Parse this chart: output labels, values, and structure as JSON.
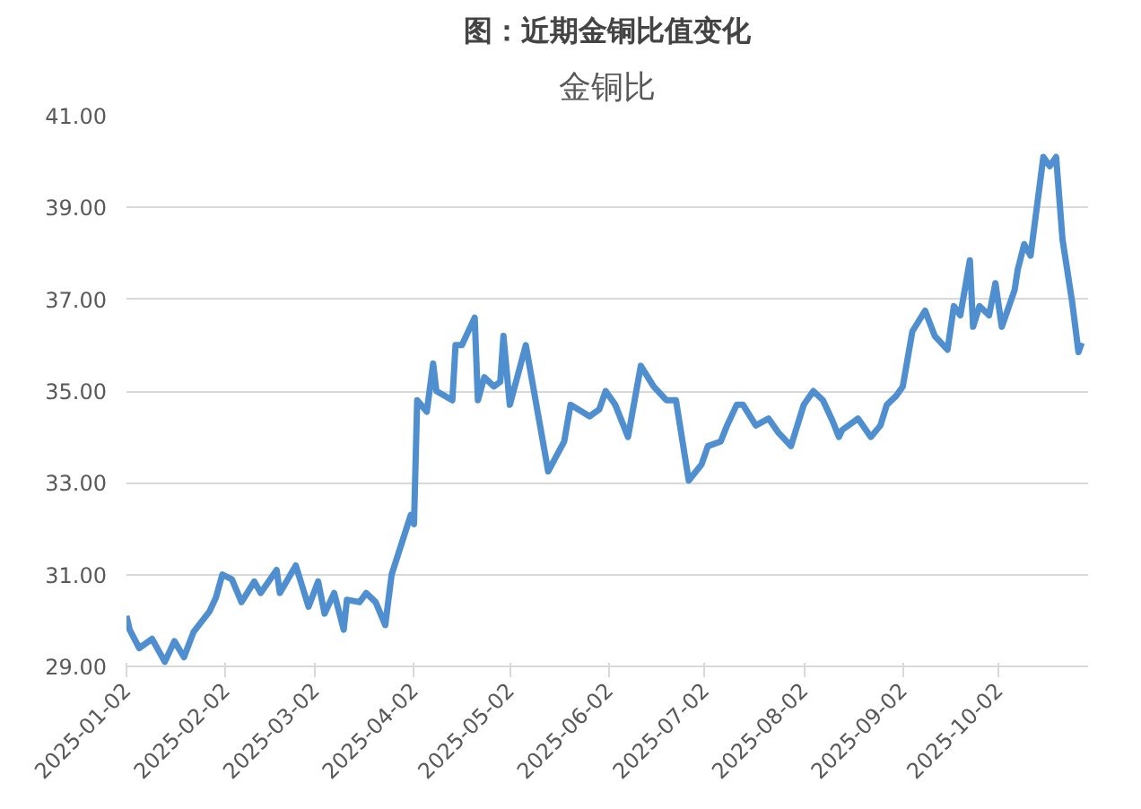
{
  "chart_data": {
    "type": "line",
    "title": "图：近期金铜比值变化",
    "subtitle": "金铜比",
    "x": [
      "2025-01-02",
      "2025-01-03",
      "2025-01-06",
      "2025-01-10",
      "2025-01-14",
      "2025-01-17",
      "2025-01-20",
      "2025-01-23",
      "2025-01-28",
      "2025-01-30",
      "2025-02-01",
      "2025-02-04",
      "2025-02-07",
      "2025-02-11",
      "2025-02-13",
      "2025-02-16",
      "2025-02-18",
      "2025-02-19",
      "2025-02-24",
      "2025-02-28",
      "2025-03-03",
      "2025-03-05",
      "2025-03-08",
      "2025-03-11",
      "2025-03-12",
      "2025-03-16",
      "2025-03-18",
      "2025-03-21",
      "2025-03-24",
      "2025-03-26",
      "2025-04-01",
      "2025-04-02",
      "2025-04-03",
      "2025-04-06",
      "2025-04-08",
      "2025-04-09",
      "2025-04-14",
      "2025-04-15",
      "2025-04-17",
      "2025-04-21",
      "2025-04-22",
      "2025-04-24",
      "2025-04-27",
      "2025-04-29",
      "2025-04-30",
      "2025-05-02",
      "2025-05-07",
      "2025-05-14",
      "2025-05-19",
      "2025-05-21",
      "2025-05-27",
      "2025-05-30",
      "2025-06-01",
      "2025-06-04",
      "2025-06-08",
      "2025-06-12",
      "2025-06-16",
      "2025-06-20",
      "2025-06-23",
      "2025-06-27",
      "2025-07-01",
      "2025-07-03",
      "2025-07-07",
      "2025-07-09",
      "2025-07-12",
      "2025-07-14",
      "2025-07-18",
      "2025-07-22",
      "2025-07-25",
      "2025-07-29",
      "2025-08-02",
      "2025-08-05",
      "2025-08-08",
      "2025-08-11",
      "2025-08-13",
      "2025-08-14",
      "2025-08-19",
      "2025-08-23",
      "2025-08-26",
      "2025-08-28",
      "2025-08-31",
      "2025-09-02",
      "2025-09-05",
      "2025-09-09",
      "2025-09-12",
      "2025-09-16",
      "2025-09-18",
      "2025-09-20",
      "2025-09-23",
      "2025-09-24",
      "2025-09-26",
      "2025-09-29",
      "2025-10-01",
      "2025-10-03",
      "2025-10-07",
      "2025-10-08",
      "2025-10-10",
      "2025-10-12",
      "2025-10-16",
      "2025-10-18",
      "2025-10-20",
      "2025-10-22",
      "2025-10-25",
      "2025-10-27",
      "2025-10-28"
    ],
    "series": [
      {
        "color": "#4f8fd0",
        "values": [
          30.1,
          29.8,
          29.4,
          29.6,
          29.1,
          29.55,
          29.2,
          29.75,
          30.2,
          30.5,
          31.0,
          30.9,
          30.4,
          30.85,
          30.6,
          30.9,
          31.1,
          30.6,
          31.2,
          30.3,
          30.85,
          30.15,
          30.6,
          29.8,
          30.45,
          30.4,
          30.6,
          30.4,
          29.9,
          31.0,
          32.3,
          32.1,
          34.8,
          34.55,
          35.6,
          35.0,
          34.8,
          36.0,
          36.0,
          36.6,
          34.8,
          35.3,
          35.1,
          35.2,
          36.2,
          34.7,
          36.0,
          33.25,
          33.9,
          34.7,
          34.45,
          34.6,
          35.0,
          34.7,
          34.0,
          35.55,
          35.1,
          34.8,
          34.8,
          33.05,
          33.4,
          33.8,
          33.9,
          34.25,
          34.7,
          34.7,
          34.25,
          34.4,
          34.1,
          33.8,
          34.7,
          35.0,
          34.8,
          34.35,
          34.0,
          34.15,
          34.4,
          34.0,
          34.25,
          34.7,
          34.9,
          35.1,
          36.3,
          36.75,
          36.2,
          35.9,
          36.85,
          36.65,
          37.85,
          36.4,
          36.85,
          36.65,
          37.35,
          36.4,
          37.2,
          37.65,
          38.2,
          37.95,
          40.1,
          39.9,
          40.1,
          38.3,
          36.95,
          35.85,
          36.05
        ]
      }
    ],
    "xlim": [
      "2025-01-02",
      "2025-10-30"
    ],
    "xticks": [
      {
        "value": "2025-01-02",
        "label": "2025-01-02"
      },
      {
        "value": "2025-02-02",
        "label": "2025-02-02"
      },
      {
        "value": "2025-03-02",
        "label": "2025-03-02"
      },
      {
        "value": "2025-04-02",
        "label": "2025-04-02"
      },
      {
        "value": "2025-05-02",
        "label": "2025-05-02"
      },
      {
        "value": "2025-06-02",
        "label": "2025-06-02"
      },
      {
        "value": "2025-07-02",
        "label": "2025-07-02"
      },
      {
        "value": "2025-08-02",
        "label": "2025-08-02"
      },
      {
        "value": "2025-09-02",
        "label": "2025-09-02"
      },
      {
        "value": "2025-10-02",
        "label": "2025-10-02"
      }
    ],
    "ylim": [
      29,
      41
    ],
    "yticks": [
      {
        "value": 29,
        "label": "29.00"
      },
      {
        "value": 31,
        "label": "31.00"
      },
      {
        "value": 33,
        "label": "33.00"
      },
      {
        "value": 35,
        "label": "35.00"
      },
      {
        "value": 37,
        "label": "37.00"
      },
      {
        "value": 39,
        "label": "39.00"
      },
      {
        "value": 41,
        "label": "41.00"
      }
    ],
    "grid": "y",
    "marker": "none",
    "line_style": "solid"
  }
}
